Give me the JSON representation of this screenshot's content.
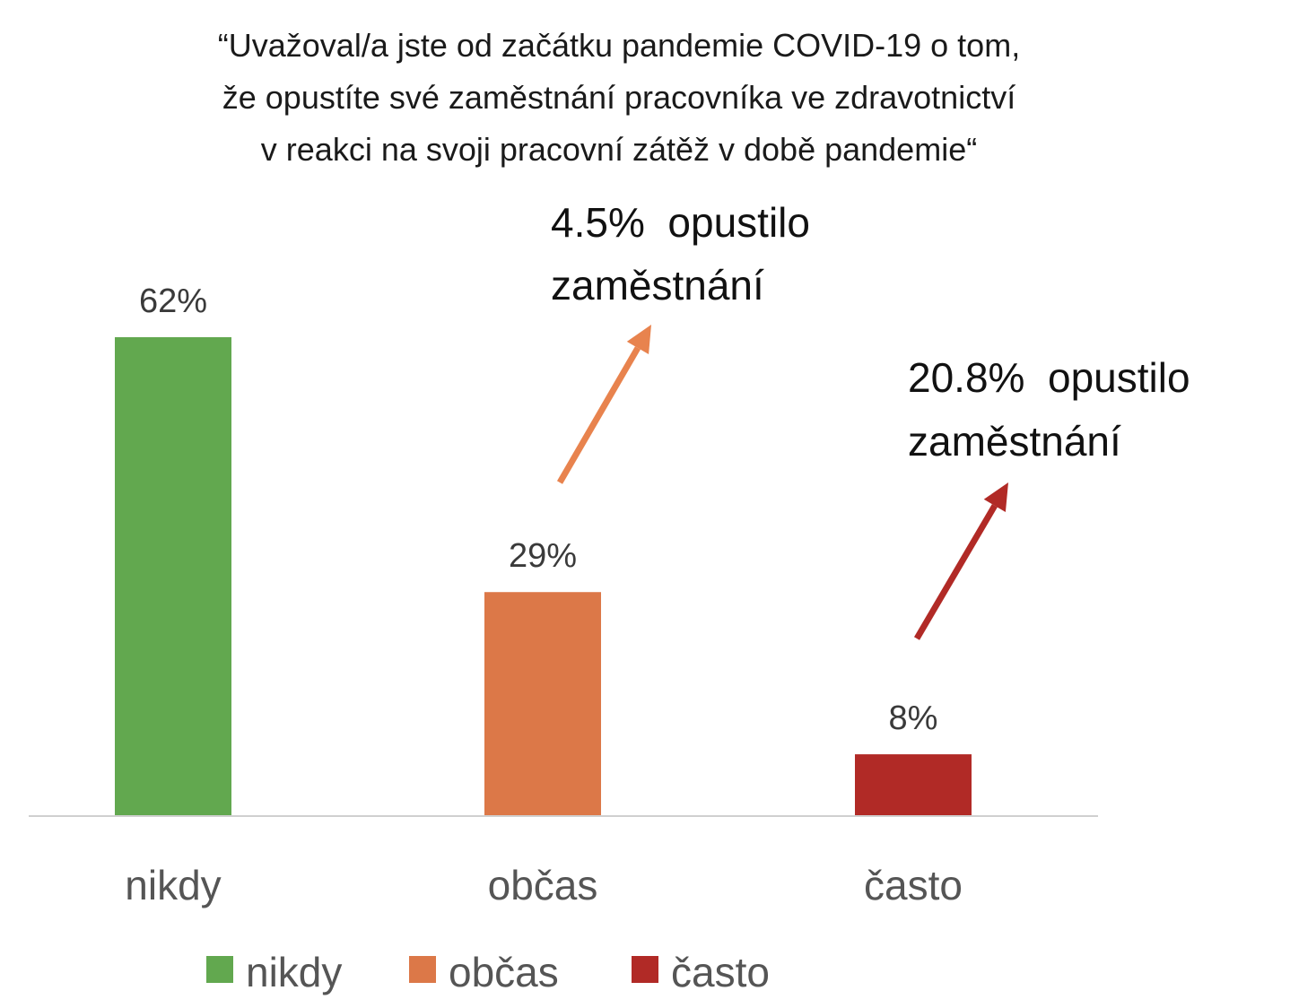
{
  "chart_data": {
    "type": "bar",
    "title_lines": [
      "“Uvažoval/a jste od začátku pandemie COVID-19 o tom,",
      "že opustíte své zaměstnání pracovníka ve zdravotnictví",
      "v reakci na svoji pracovní zátěž v době pandemie“"
    ],
    "categories": [
      "nikdy",
      "občas",
      "často"
    ],
    "values": [
      62,
      29,
      8
    ],
    "value_labels": [
      "62%",
      "29%",
      "8%"
    ],
    "colors": [
      "#62A84F",
      "#DC7848",
      "#B12A26"
    ],
    "legend": [
      "nikdy",
      "občas",
      "často"
    ],
    "legend_placement": "bottom",
    "ylim": [
      0,
      62
    ],
    "grid": false,
    "annotations": [
      {
        "category": "občas",
        "lines": [
          "4.5%  opustilo",
          "zaměstnání"
        ],
        "arrow_color": "#E8834E"
      },
      {
        "category": "často",
        "lines": [
          "20.8%  opustilo",
          "zaměstnání"
        ],
        "arrow_color": "#B12A26"
      }
    ]
  }
}
